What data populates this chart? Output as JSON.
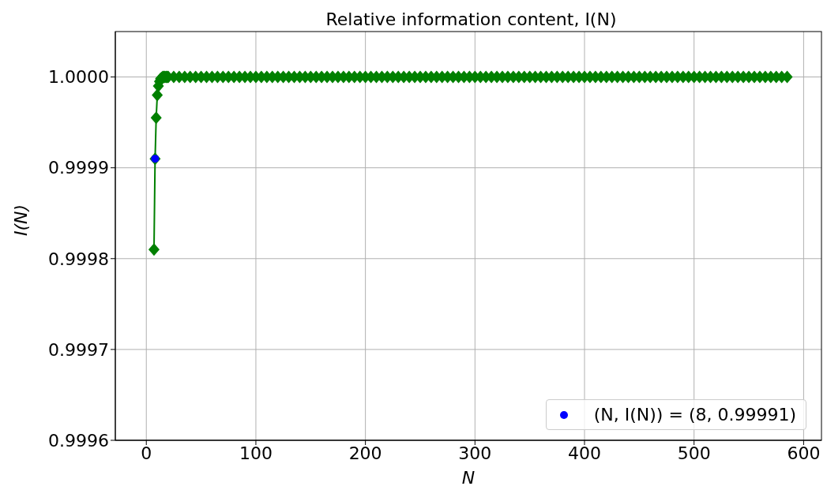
{
  "chart_data": {
    "type": "line",
    "title": "Relative information content, I(N)",
    "xlabel": "N",
    "ylabel": "I(N)",
    "xlim": [
      -28.3,
      616.3
    ],
    "xticks": [
      0,
      100,
      200,
      300,
      400,
      500,
      600
    ],
    "ylim": [
      0.9996,
      1.00005
    ],
    "yticks": [
      0.9996,
      0.9997,
      0.9998,
      0.9999,
      {
        "value": 1,
        "label": "1.0000"
      }
    ],
    "grid": true,
    "legend": "bottom right",
    "series": [
      {
        "color": "#008000",
        "marker": "diamond",
        "line_style": "solid",
        "x": [
          7,
          8,
          9,
          10,
          11,
          12,
          13,
          14,
          15,
          16,
          17,
          18,
          19,
          20,
          25,
          30,
          35,
          40,
          45,
          50,
          55,
          60,
          65,
          70,
          75,
          80,
          85,
          90,
          95,
          100,
          105,
          110,
          115,
          120,
          125,
          130,
          135,
          140,
          145,
          150,
          155,
          160,
          165,
          170,
          175,
          180,
          185,
          190,
          195,
          200,
          205,
          210,
          215,
          220,
          225,
          230,
          235,
          240,
          245,
          250,
          255,
          260,
          265,
          270,
          275,
          280,
          285,
          290,
          295,
          300,
          305,
          310,
          315,
          320,
          325,
          330,
          335,
          340,
          345,
          350,
          355,
          360,
          365,
          370,
          375,
          380,
          385,
          390,
          395,
          400,
          405,
          410,
          415,
          420,
          425,
          430,
          435,
          440,
          445,
          450,
          455,
          460,
          465,
          470,
          475,
          480,
          485,
          490,
          495,
          500,
          505,
          510,
          515,
          520,
          525,
          530,
          535,
          540,
          545,
          550,
          555,
          560,
          565,
          570,
          575,
          580,
          585
        ],
        "values": [
          0.99981,
          0.99991,
          0.999955,
          0.99998,
          0.99999,
          0.999995,
          0.999998,
          0.999999,
          1,
          1,
          1,
          1,
          1,
          1,
          1,
          1,
          1,
          1,
          1,
          1,
          1,
          1,
          1,
          1,
          1,
          1,
          1,
          1,
          1,
          1,
          1,
          1,
          1,
          1,
          1,
          1,
          1,
          1,
          1,
          1,
          1,
          1,
          1,
          1,
          1,
          1,
          1,
          1,
          1,
          1,
          1,
          1,
          1,
          1,
          1,
          1,
          1,
          1,
          1,
          1,
          1,
          1,
          1,
          1,
          1,
          1,
          1,
          1,
          1,
          1,
          1,
          1,
          1,
          1,
          1,
          1,
          1,
          1,
          1,
          1,
          1,
          1,
          1,
          1,
          1,
          1,
          1,
          1,
          1,
          1,
          1,
          1,
          1,
          1,
          1,
          1,
          1,
          1,
          1,
          1,
          1,
          1,
          1,
          1,
          1,
          1,
          1,
          1,
          1,
          1,
          1,
          1,
          1,
          1,
          1,
          1,
          1,
          1,
          1,
          1,
          1,
          1,
          1,
          1,
          1,
          1,
          1
        ]
      },
      {
        "type": "scatter",
        "name": "(N, I(N)) = (8, 0.99991)",
        "color": "#0000ff",
        "marker": "circle",
        "x": [
          8
        ],
        "values": [
          0.99991
        ]
      }
    ]
  }
}
